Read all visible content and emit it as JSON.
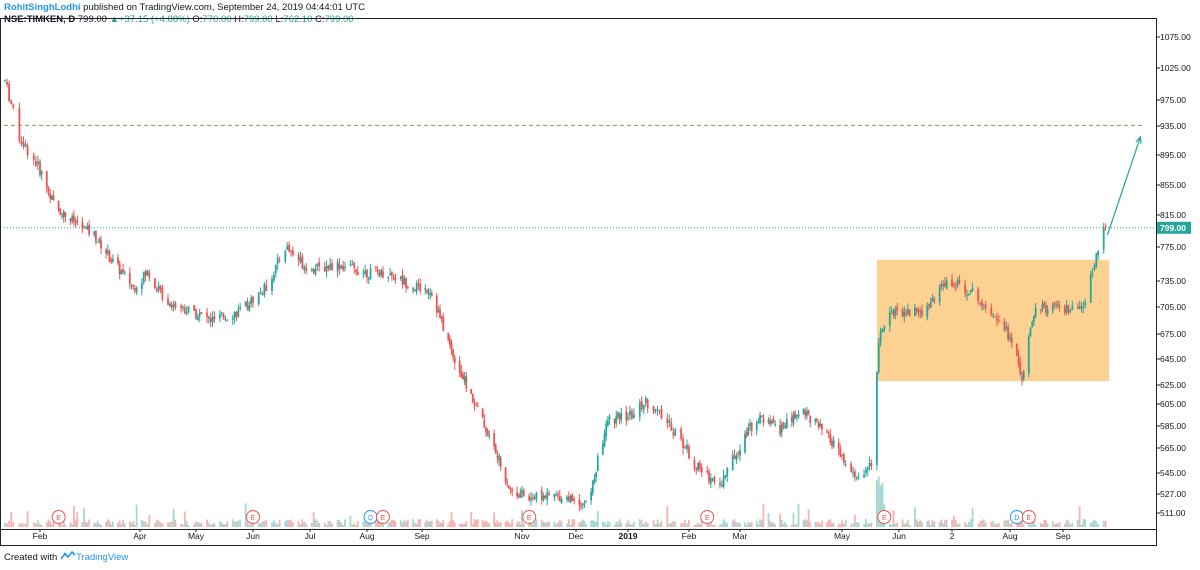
{
  "header": {
    "author": "RohitSinghLodhi",
    "published": "published on TradingView.com, September 24, 2019 04:44:01 UTC",
    "symbol": "NSE:TIMKEN, D",
    "price": "799.00",
    "change": "+37.15 (+4.88%)",
    "o_label": "O:",
    "o_value": "770.00",
    "h_label": "H:",
    "h_value": "799.00",
    "l_label": "L:",
    "l_value": "762.10",
    "c_label": "C:",
    "c_value": "799.00",
    "arrow_icon": "triangle-up-icon"
  },
  "footer": {
    "created_with": "Created with",
    "brand": "TradingView",
    "logo_icon": "tradingview-logo-icon"
  },
  "colors": {
    "up": "#26a69a",
    "down": "#ef5350",
    "box": "#fdc97e",
    "arrow": "#26a69a",
    "dashed": "#7da35a",
    "last_price": "#26a69a"
  },
  "chart_data": {
    "type": "candlestick",
    "symbol": "NSE:TIMKEN",
    "interval": "D",
    "ylim": [
      495,
      1085
    ],
    "y_ticks": [
      1075,
      1025,
      975,
      935,
      895,
      855,
      815,
      775,
      735,
      705,
      675,
      645,
      625,
      605,
      585,
      565,
      545,
      527,
      511
    ],
    "y_tick_labels": [
      "1075.00",
      "1025.00",
      "975.00",
      "935.00",
      "895.00",
      "855.00",
      "815.00",
      "775.00",
      "735.00",
      "705.00",
      "675.00",
      "645.00",
      "625.00",
      "605.00",
      "585.00",
      "565.00",
      "545.00",
      "527.00",
      "511.00"
    ],
    "x_tick_labels": [
      "Feb",
      "Apr",
      "May",
      "Jun",
      "Jul",
      "Aug",
      "Sep",
      "Nov",
      "Dec",
      "2019",
      "Feb",
      "Mar",
      "May",
      "Jun",
      "2",
      "Aug",
      "Sep"
    ],
    "x_range": [
      "2018-01-15",
      "2019-10-18"
    ],
    "price_path": [
      [
        "2018-01-15",
        1005
      ],
      [
        "2018-01-22",
        920
      ],
      [
        "2018-02-01",
        875
      ],
      [
        "2018-02-10",
        825
      ],
      [
        "2018-02-20",
        808
      ],
      [
        "2018-03-05",
        790
      ],
      [
        "2018-03-15",
        760
      ],
      [
        "2018-03-28",
        728
      ],
      [
        "2018-04-05",
        745
      ],
      [
        "2018-04-15",
        712
      ],
      [
        "2018-05-10",
        690
      ],
      [
        "2018-05-25",
        700
      ],
      [
        "2018-06-08",
        728
      ],
      [
        "2018-06-18",
        775
      ],
      [
        "2018-07-01",
        748
      ],
      [
        "2018-07-15",
        755
      ],
      [
        "2018-08-01",
        745
      ],
      [
        "2018-08-12",
        745
      ],
      [
        "2018-08-28",
        728
      ],
      [
        "2018-09-06",
        725
      ],
      [
        "2018-09-20",
        650
      ],
      [
        "2018-10-05",
        600
      ],
      [
        "2018-10-25",
        530
      ],
      [
        "2018-11-05",
        525
      ],
      [
        "2018-11-25",
        525
      ],
      [
        "2018-12-08",
        518
      ],
      [
        "2018-12-20",
        590
      ],
      [
        "2019-01-03",
        595
      ],
      [
        "2019-01-10",
        608
      ],
      [
        "2019-01-25",
        580
      ],
      [
        "2019-02-05",
        550
      ],
      [
        "2019-02-18",
        535
      ],
      [
        "2019-03-05",
        580
      ],
      [
        "2019-03-12",
        592
      ],
      [
        "2019-03-25",
        582
      ],
      [
        "2019-04-08",
        600
      ],
      [
        "2019-04-25",
        570
      ],
      [
        "2019-05-08",
        540
      ],
      [
        "2019-05-17",
        550
      ],
      [
        "2019-05-21",
        670
      ],
      [
        "2019-05-27",
        700
      ],
      [
        "2019-06-15",
        700
      ],
      [
        "2019-06-28",
        735
      ],
      [
        "2019-07-10",
        725
      ],
      [
        "2019-07-28",
        690
      ],
      [
        "2019-08-08",
        630
      ],
      [
        "2019-08-16",
        705
      ],
      [
        "2019-09-02",
        702
      ],
      [
        "2019-09-12",
        700
      ],
      [
        "2019-09-18",
        760
      ],
      [
        "2019-09-24",
        799
      ]
    ],
    "last_price": 799.0,
    "last_price_label": "799.00",
    "events": [
      {
        "date": "2018-02-12",
        "label": "E"
      },
      {
        "date": "2018-06-01",
        "label": "E"
      },
      {
        "date": "2018-08-03",
        "label": "D"
      },
      {
        "date": "2018-08-10",
        "label": "E"
      },
      {
        "date": "2018-11-05",
        "label": "E"
      },
      {
        "date": "2019-02-11",
        "label": "E"
      },
      {
        "date": "2019-05-24",
        "label": "E"
      },
      {
        "date": "2019-08-05",
        "label": "D"
      },
      {
        "date": "2019-08-12",
        "label": "E"
      }
    ],
    "annotations": {
      "horizontal_dashed_line": 936,
      "horizontal_dotted_line": 799,
      "range_box": {
        "start": "2019-05-20",
        "end": "2019-09-26",
        "top": 760,
        "bottom": 628
      },
      "arrow": {
        "from_date": "2019-09-25",
        "from_price": 790,
        "to_date": "2019-10-15",
        "to_price": 920
      }
    },
    "grid": false,
    "legend": "none"
  }
}
